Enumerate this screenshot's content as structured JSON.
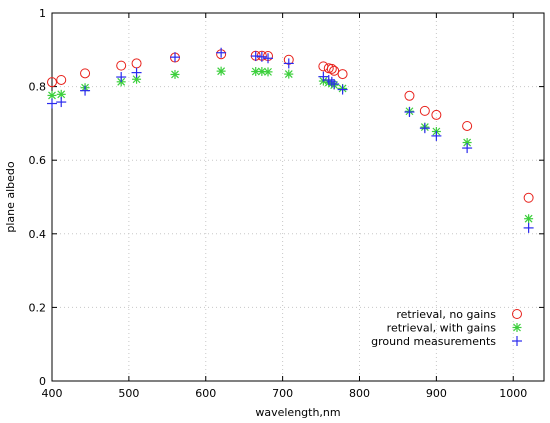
{
  "chart_data": {
    "type": "scatter",
    "title": "",
    "xlabel": "wavelength,nm",
    "ylabel": "plane albedo",
    "xlim": [
      400,
      1040
    ],
    "ylim": [
      0,
      1
    ],
    "xticks": [
      400,
      500,
      600,
      700,
      800,
      900,
      1000
    ],
    "yticks": [
      0,
      0.2,
      0.4,
      0.6,
      0.8,
      1
    ],
    "ytick_labels": [
      "0",
      "0.2",
      "0.4",
      "0.6",
      "0.8",
      "1"
    ],
    "grid": true,
    "legend_position": "bottom-right",
    "series": [
      {
        "name": "retrieval, no gains",
        "marker": "circle",
        "color": "#e8201a",
        "x": [
          400,
          412,
          443,
          490,
          510,
          560,
          620,
          665,
          673,
          681,
          708,
          753,
          760,
          764,
          767,
          778,
          865,
          885,
          900,
          940,
          1020
        ],
        "y": [
          0.812,
          0.818,
          0.836,
          0.857,
          0.863,
          0.879,
          0.888,
          0.884,
          0.884,
          0.883,
          0.873,
          0.855,
          0.85,
          0.848,
          0.843,
          0.834,
          0.775,
          0.734,
          0.723,
          0.693,
          0.498
        ]
      },
      {
        "name": "retrieval, with gains",
        "marker": "asterisk",
        "color": "#3ccf3c",
        "x": [
          400,
          412,
          443,
          490,
          510,
          560,
          620,
          665,
          673,
          681,
          708,
          753,
          760,
          764,
          767,
          778,
          865,
          885,
          900,
          940,
          1020
        ],
        "y": [
          0.776,
          0.779,
          0.797,
          0.813,
          0.82,
          0.833,
          0.842,
          0.841,
          0.841,
          0.84,
          0.834,
          0.815,
          0.811,
          0.808,
          0.804,
          0.795,
          0.733,
          0.69,
          0.678,
          0.648,
          0.441
        ]
      },
      {
        "name": "ground measurements",
        "marker": "plus",
        "color": "#2a2aee",
        "x": [
          400,
          412,
          443,
          490,
          510,
          560,
          620,
          665,
          673,
          681,
          708,
          753,
          760,
          764,
          767,
          778,
          865,
          885,
          900,
          940,
          1020
        ],
        "y": [
          0.754,
          0.758,
          0.789,
          0.826,
          0.838,
          0.88,
          0.892,
          0.883,
          0.881,
          0.877,
          0.863,
          0.827,
          0.818,
          0.813,
          0.807,
          0.792,
          0.731,
          0.687,
          0.666,
          0.633,
          0.416
        ]
      }
    ]
  }
}
